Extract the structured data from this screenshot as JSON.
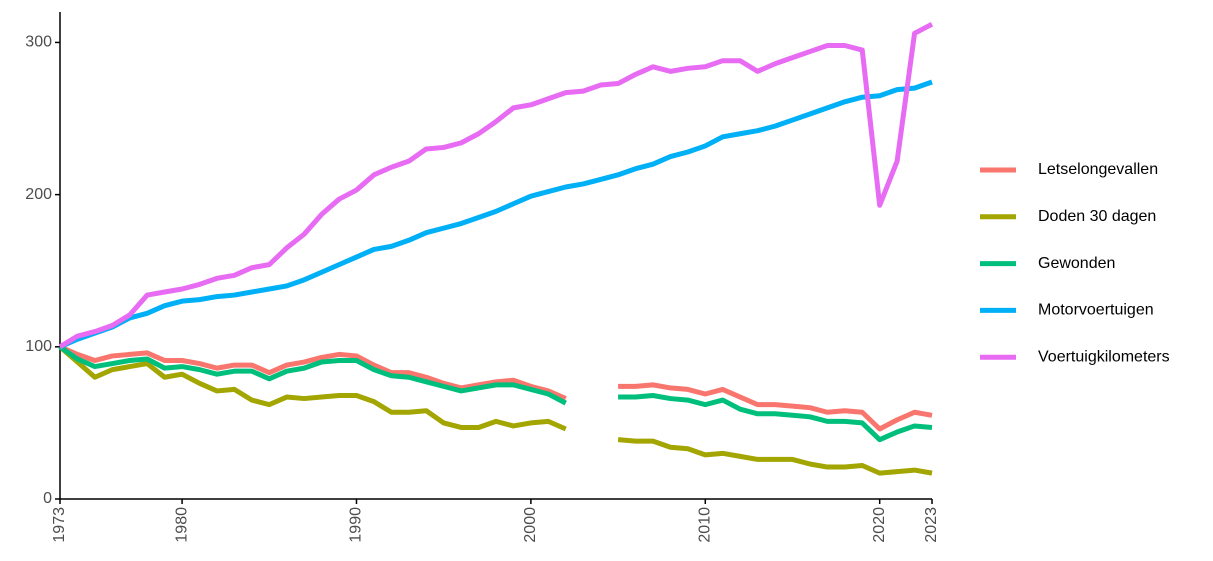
{
  "chart_data": {
    "type": "line",
    "x": [
      1973,
      1974,
      1975,
      1976,
      1977,
      1978,
      1979,
      1980,
      1981,
      1982,
      1983,
      1984,
      1985,
      1986,
      1987,
      1988,
      1989,
      1990,
      1991,
      1992,
      1993,
      1994,
      1995,
      1996,
      1997,
      1998,
      1999,
      2000,
      2001,
      2002,
      2003,
      2004,
      2005,
      2006,
      2007,
      2008,
      2009,
      2010,
      2011,
      2012,
      2013,
      2014,
      2015,
      2016,
      2017,
      2018,
      2019,
      2020,
      2021,
      2022,
      2023
    ],
    "series": [
      {
        "name": "Letselongevallen",
        "color": "#F8766D",
        "values": [
          100,
          95,
          91,
          94,
          95,
          96,
          91,
          91,
          89,
          86,
          88,
          88,
          83,
          88,
          90,
          93,
          95,
          94,
          88,
          83,
          83,
          80,
          76,
          73,
          75,
          77,
          78,
          74,
          71,
          66,
          null,
          null,
          74,
          74,
          75,
          73,
          72,
          69,
          72,
          67,
          62,
          62,
          61,
          60,
          57,
          58,
          57,
          46,
          52,
          57,
          55
        ]
      },
      {
        "name": "Doden 30 dagen",
        "color": "#A3A500",
        "values": [
          100,
          90,
          80,
          85,
          87,
          89,
          80,
          82,
          76,
          71,
          72,
          65,
          62,
          67,
          66,
          67,
          68,
          68,
          64,
          57,
          57,
          58,
          50,
          47,
          47,
          51,
          48,
          50,
          51,
          46,
          null,
          null,
          39,
          38,
          38,
          34,
          33,
          29,
          30,
          28,
          26,
          26,
          26,
          23,
          21,
          21,
          22,
          17,
          18,
          19,
          17
        ]
      },
      {
        "name": "Gewonden",
        "color": "#00BF7D",
        "values": [
          100,
          92,
          87,
          89,
          91,
          92,
          86,
          87,
          85,
          82,
          84,
          84,
          79,
          84,
          86,
          90,
          91,
          91,
          85,
          81,
          80,
          77,
          74,
          71,
          73,
          75,
          75,
          72,
          69,
          63,
          null,
          null,
          67,
          67,
          68,
          66,
          65,
          62,
          65,
          59,
          56,
          56,
          55,
          54,
          51,
          51,
          50,
          39,
          44,
          48,
          47
        ]
      },
      {
        "name": "Motorvoertuigen",
        "color": "#00B0F6",
        "values": [
          100,
          105,
          109,
          113,
          119,
          122,
          127,
          130,
          131,
          133,
          134,
          136,
          138,
          140,
          144,
          149,
          154,
          159,
          164,
          166,
          170,
          175,
          178,
          181,
          185,
          189,
          194,
          199,
          202,
          205,
          207,
          210,
          213,
          217,
          220,
          225,
          228,
          232,
          238,
          240,
          242,
          245,
          249,
          253,
          257,
          261,
          264,
          265,
          269,
          270,
          274
        ]
      },
      {
        "name": "Voertuigkilometers",
        "color": "#E76BF3",
        "values": [
          100,
          107,
          110,
          114,
          121,
          134,
          136,
          138,
          141,
          145,
          147,
          152,
          154,
          165,
          174,
          187,
          197,
          203,
          213,
          218,
          222,
          230,
          231,
          234,
          240,
          248,
          257,
          259,
          263,
          267,
          268,
          272,
          273,
          279,
          284,
          281,
          283,
          284,
          288,
          288,
          281,
          286,
          290,
          294,
          298,
          298,
          295,
          193,
          222,
          306,
          312
        ]
      }
    ],
    "xlim": [
      1973,
      2023
    ],
    "xticks": [
      1973,
      1980,
      1990,
      2000,
      2010,
      2020,
      2023
    ],
    "ylim": [
      0,
      320
    ],
    "yticks": [
      0,
      100,
      200,
      300
    ],
    "grid": false,
    "legend": "right"
  }
}
